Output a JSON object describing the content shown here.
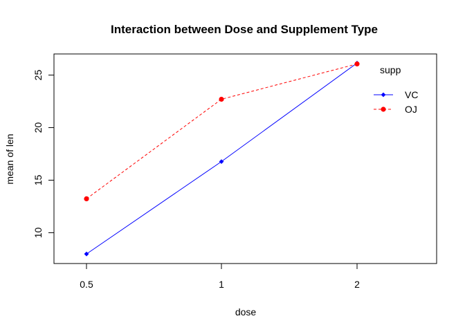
{
  "chart_data": {
    "type": "line",
    "title": "Interaction between Dose and Supplement Type",
    "xlabel": "dose",
    "ylabel": "mean of  len",
    "categories": [
      "0.5",
      "1",
      "2"
    ],
    "ylim": [
      7.07,
      27.01
    ],
    "yticks": [
      10,
      15,
      20,
      25
    ],
    "grid": false,
    "legend": {
      "title": "supp",
      "position": "top-right"
    },
    "series": [
      {
        "name": "VC",
        "values": [
          7.98,
          16.77,
          26.14
        ],
        "color": "#0000ff",
        "linestyle": "solid",
        "marker": "diamond"
      },
      {
        "name": "OJ",
        "values": [
          13.23,
          22.7,
          26.06
        ],
        "color": "#ff0000",
        "linestyle": "dashed",
        "marker": "circle"
      }
    ]
  }
}
